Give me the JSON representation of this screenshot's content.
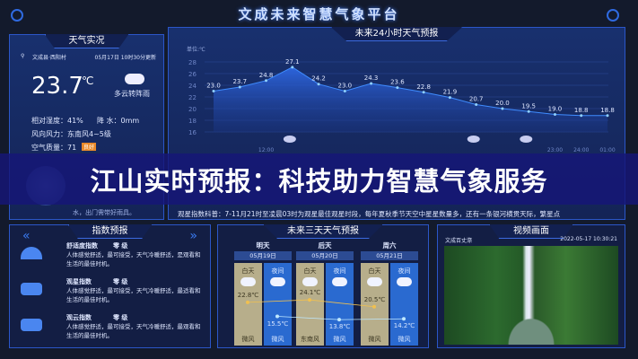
{
  "header": {
    "title": "文成未来智慧气象平台"
  },
  "live": {
    "title": "天气实况",
    "location": "文成县·西阳村",
    "updated": "05月17日 10时30分更新",
    "temperature": "23.7",
    "unit": "℃",
    "condition": "多云转阵雨",
    "humidity": "相对湿度：41%",
    "rain": "降 水：0mm",
    "wind": "风向风力：东南风4~5级",
    "aqi": "空气质量：71",
    "aqi_badge": "良好",
    "tip": "水，出门需带好雨具。",
    "aqi_badge_color": "#e8892a"
  },
  "hourly": {
    "title": "未来24小时天气预报",
    "ticker": "观星指数科普：7-11月21时至凌晨03时为观星最佳观星时段，每年夏秋季节天空中星星数量多，还有一条银河横贯天际，繁星点"
  },
  "chart_data": {
    "type": "area",
    "ylabel": "单位:℃",
    "ylim": [
      16,
      28
    ],
    "yticks": [
      16,
      18,
      20,
      22,
      24,
      26,
      28
    ],
    "grid": true,
    "x": [
      "",
      "",
      "12:00",
      "",
      "",
      "",
      "",
      "",
      "",
      "",
      "",
      "",
      "",
      "23:00",
      "24:00",
      "01:00"
    ],
    "values": [
      23.0,
      23.7,
      24.8,
      27.1,
      24.2,
      23.0,
      24.3,
      23.6,
      22.8,
      21.9,
      20.7,
      20.0,
      19.5,
      19.0,
      18.8,
      18.8
    ],
    "color": "#3f8cff"
  },
  "banner": {
    "text": "江山实时预报：科技助力智慧气象服务"
  },
  "index": {
    "title": "指数预报",
    "items": [
      {
        "name": "舒适度指数",
        "level": "零 级",
        "desc": "人体感觉舒适，最可接受，天气冷暖舒适，是观看和生活的最佳时机。",
        "icon": "tent-icon"
      },
      {
        "name": "观星指数",
        "level": "零 级",
        "desc": "人体感觉舒适，最可接受，天气冷暖舒适，最适看和生活的最佳时机。",
        "icon": "lotus-icon"
      },
      {
        "name": "观云指数",
        "level": "零 级",
        "desc": "人体感觉舒适，最可接受，天气冷暖舒适，最观看和生活的最佳时机。",
        "icon": "mountain-icon"
      }
    ]
  },
  "threeday": {
    "title": "未来三天天气预报",
    "days": [
      {
        "name": "明天",
        "date": "05月19日",
        "day_label": "白天",
        "night_label": "夜间",
        "day_temp": "22.8℃",
        "night_temp": "15.5℃",
        "day_wind": "微风",
        "night_wind": "微风",
        "hi": 22.8,
        "lo": 15.5
      },
      {
        "name": "后天",
        "date": "05月20日",
        "day_label": "白天",
        "night_label": "夜间",
        "day_temp": "24.1℃",
        "night_temp": "13.8℃",
        "day_wind": "东南风",
        "night_wind": "微风",
        "hi": 24.1,
        "lo": 13.8
      },
      {
        "name": "周六",
        "date": "05月21日",
        "day_label": "白天",
        "night_label": "夜间",
        "day_temp": "20.5℃",
        "night_temp": "14.2℃",
        "day_wind": "微风",
        "night_wind": "微风",
        "hi": 20.5,
        "lo": 14.2
      }
    ],
    "day_color": "#b7ae8b",
    "night_color": "#2a6ad0"
  },
  "video": {
    "title": "视频画面",
    "location": "文成百丈漈",
    "timestamp": "2022-05-17  10:30:21"
  }
}
